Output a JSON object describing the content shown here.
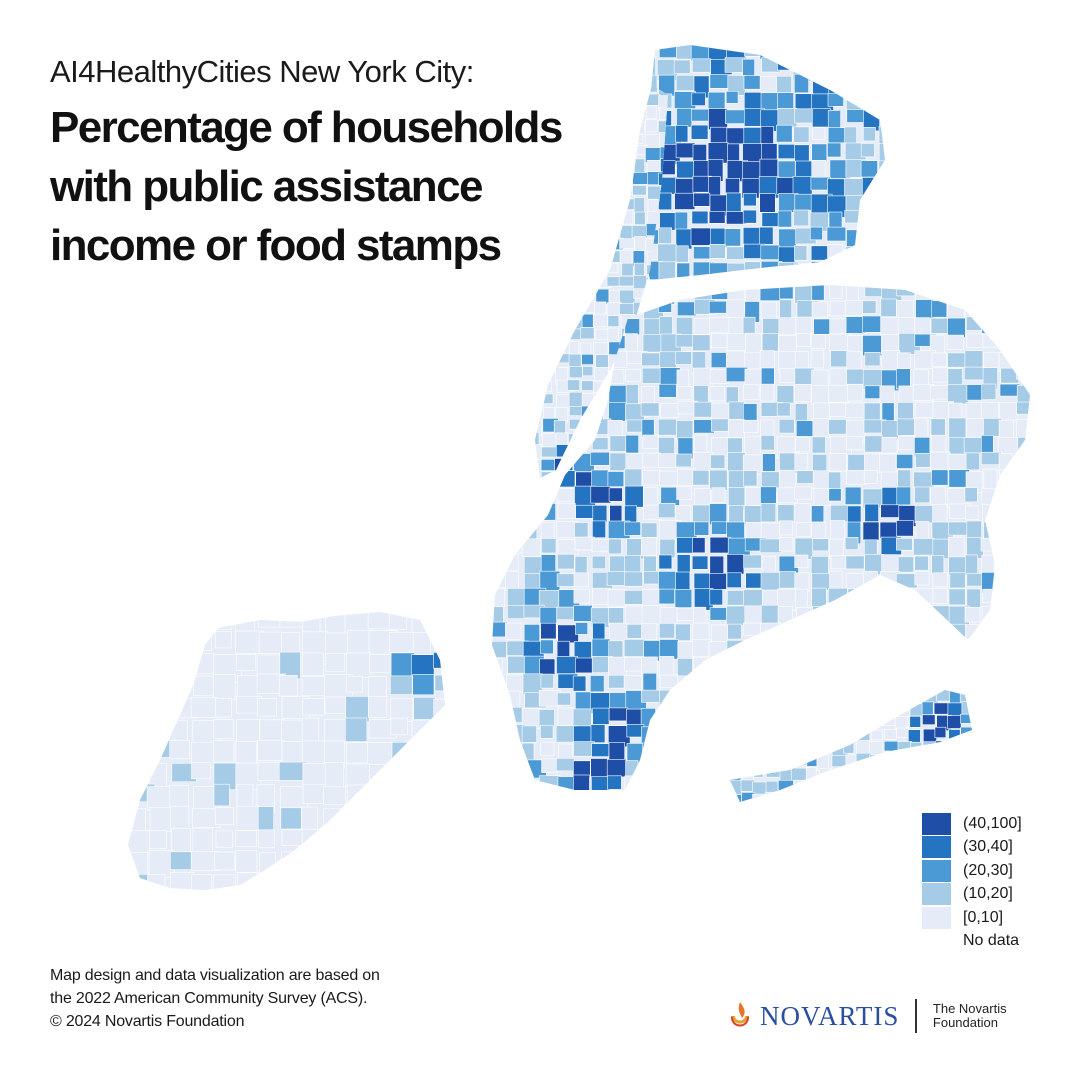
{
  "header": {
    "kicker": "AI4HealthyCities New York City:",
    "title_lines": [
      "Percentage of households",
      "with public assistance",
      "income or food stamps"
    ]
  },
  "map": {
    "regions": [
      "Bronx",
      "Manhattan",
      "Queens",
      "Brooklyn",
      "Staten Island",
      "Rockaway Peninsula"
    ]
  },
  "legend": {
    "items": [
      {
        "label": "(40,100]",
        "color": "#1f4ea6"
      },
      {
        "label": "(30,40]",
        "color": "#2474c1"
      },
      {
        "label": "(20,30]",
        "color": "#4b9ad6"
      },
      {
        "label": "(10,20]",
        "color": "#a6cbe7"
      },
      {
        "label": "[0,10]",
        "color": "#e6ecf7"
      }
    ],
    "no_data_label": "No data"
  },
  "footer": {
    "lines": [
      "Map design and data visualization are based on",
      "the 2022 American Community Survey (ACS).",
      "© 2024 Novartis Foundation"
    ]
  },
  "logo": {
    "brand": "NOVARTIS",
    "foundation_lines": [
      "The Novartis",
      "Foundation"
    ]
  }
}
